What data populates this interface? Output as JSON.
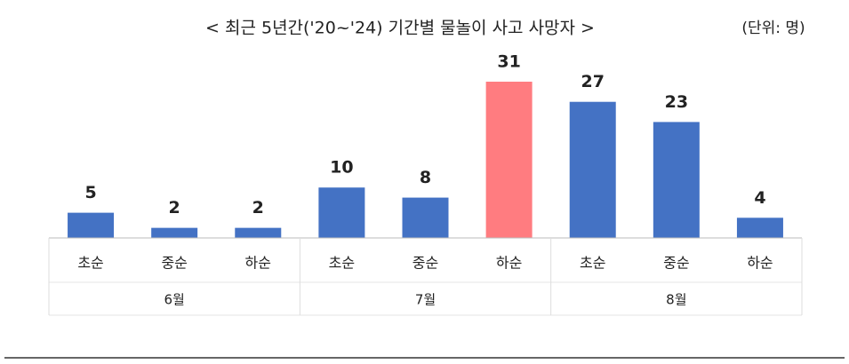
{
  "chart_data": {
    "type": "bar",
    "title": "< 최근 5년간('20~'24) 기간별 물놀이 사고 사망자 >",
    "unit": "(단위: 명)",
    "categories": [
      "초순",
      "중순",
      "하순",
      "초순",
      "중순",
      "하순",
      "초순",
      "중순",
      "하순"
    ],
    "groups": [
      "6월",
      "7월",
      "8월"
    ],
    "values": [
      5,
      2,
      2,
      10,
      8,
      31,
      27,
      23,
      4
    ],
    "colors": [
      "#4472c4",
      "#4472c4",
      "#4472c4",
      "#4472c4",
      "#4472c4",
      "#ff7c80",
      "#4472c4",
      "#4472c4",
      "#4472c4"
    ]
  }
}
